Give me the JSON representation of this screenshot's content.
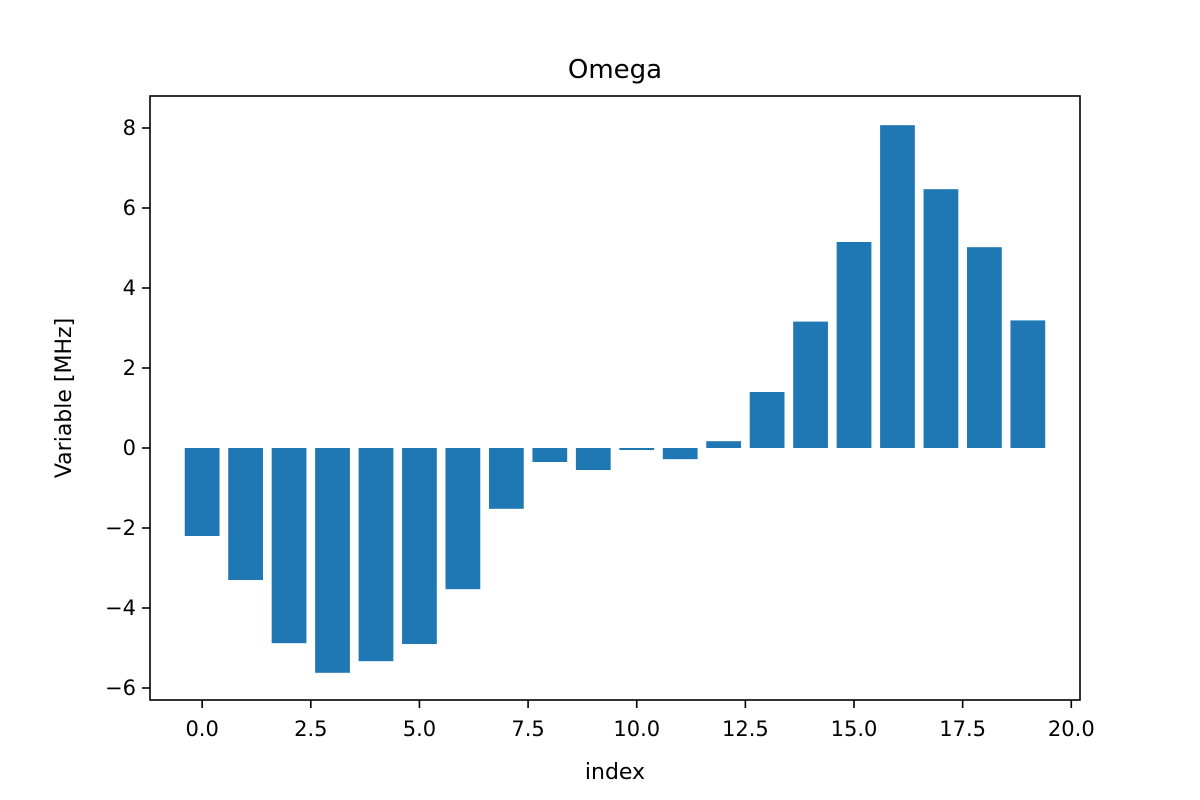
{
  "chart_data": {
    "type": "bar",
    "title": "Omega",
    "xlabel": "index",
    "ylabel": "Variable [MHz]",
    "x": [
      0,
      1,
      2,
      3,
      4,
      5,
      6,
      7,
      8,
      9,
      10,
      11,
      12,
      13,
      14,
      15,
      16,
      17,
      18,
      19
    ],
    "values": [
      -2.2,
      -3.3,
      -4.88,
      -5.62,
      -5.33,
      -4.9,
      -3.53,
      -1.52,
      -0.35,
      -0.55,
      -0.05,
      -0.28,
      0.17,
      1.4,
      3.16,
      5.15,
      8.07,
      6.47,
      5.02,
      3.19
    ],
    "bar_color": "#1f77b4",
    "xlim": [
      -1.2,
      20.2
    ],
    "ylim": [
      -6.3,
      8.8
    ],
    "xticks": [
      0.0,
      2.5,
      5.0,
      7.5,
      10.0,
      12.5,
      15.0,
      17.5,
      20.0
    ],
    "xtick_labels": [
      "0.0",
      "2.5",
      "5.0",
      "7.5",
      "10.0",
      "12.5",
      "15.0",
      "17.5",
      "20.0"
    ],
    "yticks": [
      -6,
      -4,
      -2,
      0,
      2,
      4,
      6,
      8
    ],
    "ytick_labels": [
      "−6",
      "−4",
      "−2",
      "0",
      "2",
      "4",
      "6",
      "8"
    ],
    "grid": false,
    "legend": false
  }
}
